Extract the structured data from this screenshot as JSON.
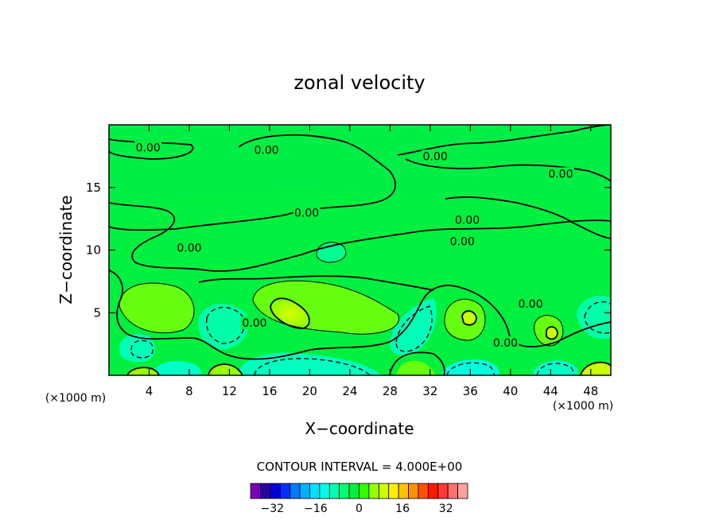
{
  "chart_data": {
    "type": "heatmap",
    "subtype": "filled contour",
    "title": "zonal velocity",
    "xlabel": "X−coordinate",
    "ylabel": "Z−coordinate",
    "x_unit": "(×1000 m)",
    "y_unit": "(×1000 m)",
    "xlim": [
      0,
      50
    ],
    "ylim": [
      0,
      20
    ],
    "x_ticks": [
      4,
      8,
      12,
      16,
      20,
      24,
      28,
      32,
      36,
      40,
      44,
      48
    ],
    "y_ticks": [
      5,
      10,
      15
    ],
    "x_tick_labels": [
      "4",
      "8",
      "12",
      "16",
      "20",
      "24",
      "28",
      "32",
      "36",
      "40",
      "44",
      "48"
    ],
    "y_tick_labels": [
      "5",
      "10",
      "15"
    ],
    "contour_interval_text": "CONTOUR INTERVAL = 4.000E+00",
    "contour_interval": 4.0,
    "contour_labels": [
      {
        "text": "0.00",
        "x": 3.9,
        "z": 18.2
      },
      {
        "text": "0.00",
        "x": 15.7,
        "z": 18.0
      },
      {
        "text": "0.00",
        "x": 32.5,
        "z": 17.5
      },
      {
        "text": "0.00",
        "x": 45.0,
        "z": 16.1
      },
      {
        "text": "0.00",
        "x": 19.7,
        "z": 13.0
      },
      {
        "text": "0.00",
        "x": 35.7,
        "z": 12.4
      },
      {
        "text": "0.00",
        "x": 35.2,
        "z": 10.7
      },
      {
        "text": "0.00",
        "x": 8.0,
        "z": 10.2
      },
      {
        "text": "0.00",
        "x": 42.0,
        "z": 5.7
      },
      {
        "text": "0.00",
        "x": 14.5,
        "z": 4.2
      },
      {
        "text": "0.00",
        "x": 39.5,
        "z": 2.6
      }
    ],
    "colorbar": {
      "min": -40,
      "max": 40,
      "tick_values": [
        -32,
        -16,
        0,
        16,
        32
      ],
      "tick_labels": [
        "−32",
        "−16",
        "0",
        "16",
        "32"
      ],
      "colors": [
        "#7a00b8",
        "#2a00a0",
        "#0000d8",
        "#0030ff",
        "#0078ff",
        "#00b0ff",
        "#00e0ff",
        "#00ffe8",
        "#00ffb0",
        "#00ff6e",
        "#00f040",
        "#30ff00",
        "#98ff00",
        "#d0ff00",
        "#fff000",
        "#ffc400",
        "#ff9000",
        "#ff5000",
        "#ff1800",
        "#ff3838",
        "#ff7070",
        "#ffa0a0"
      ]
    }
  }
}
